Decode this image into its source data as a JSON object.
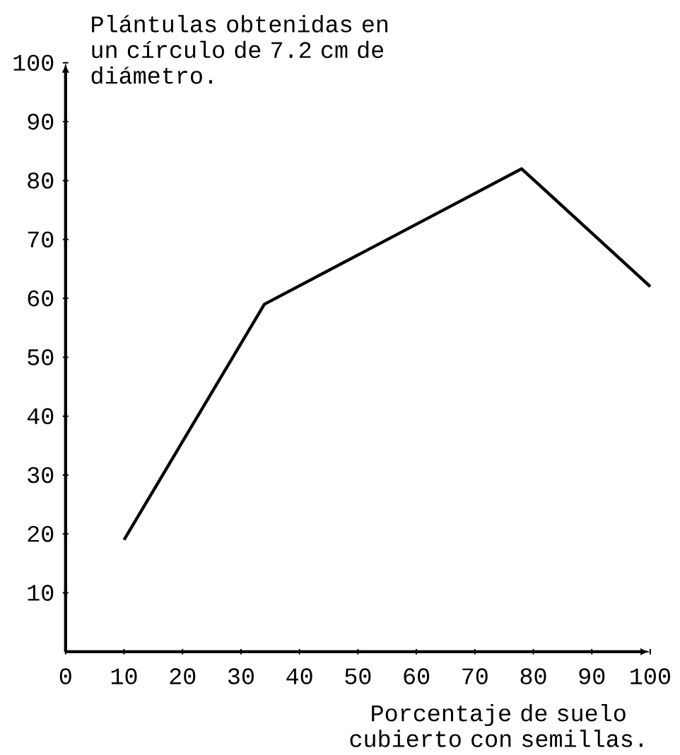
{
  "chart_data": {
    "type": "line",
    "xlabel": "Porcentaje de suelo cubierto con semillas.",
    "ylabel": "Plántulas obtenidas en un círculo de 7.2 cm de diámetro.",
    "x": [
      10,
      34,
      78,
      100
    ],
    "series": [
      {
        "color": "#000000",
        "values": [
          19,
          59,
          82,
          62
        ]
      }
    ],
    "xlim": [
      0,
      100
    ],
    "ylim": [
      0,
      100
    ],
    "xticks": [
      0,
      10,
      20,
      30,
      40,
      50,
      60,
      70,
      80,
      90,
      100
    ],
    "yticks": [
      10,
      20,
      30,
      40,
      50,
      60,
      70,
      80,
      90,
      100
    ]
  }
}
